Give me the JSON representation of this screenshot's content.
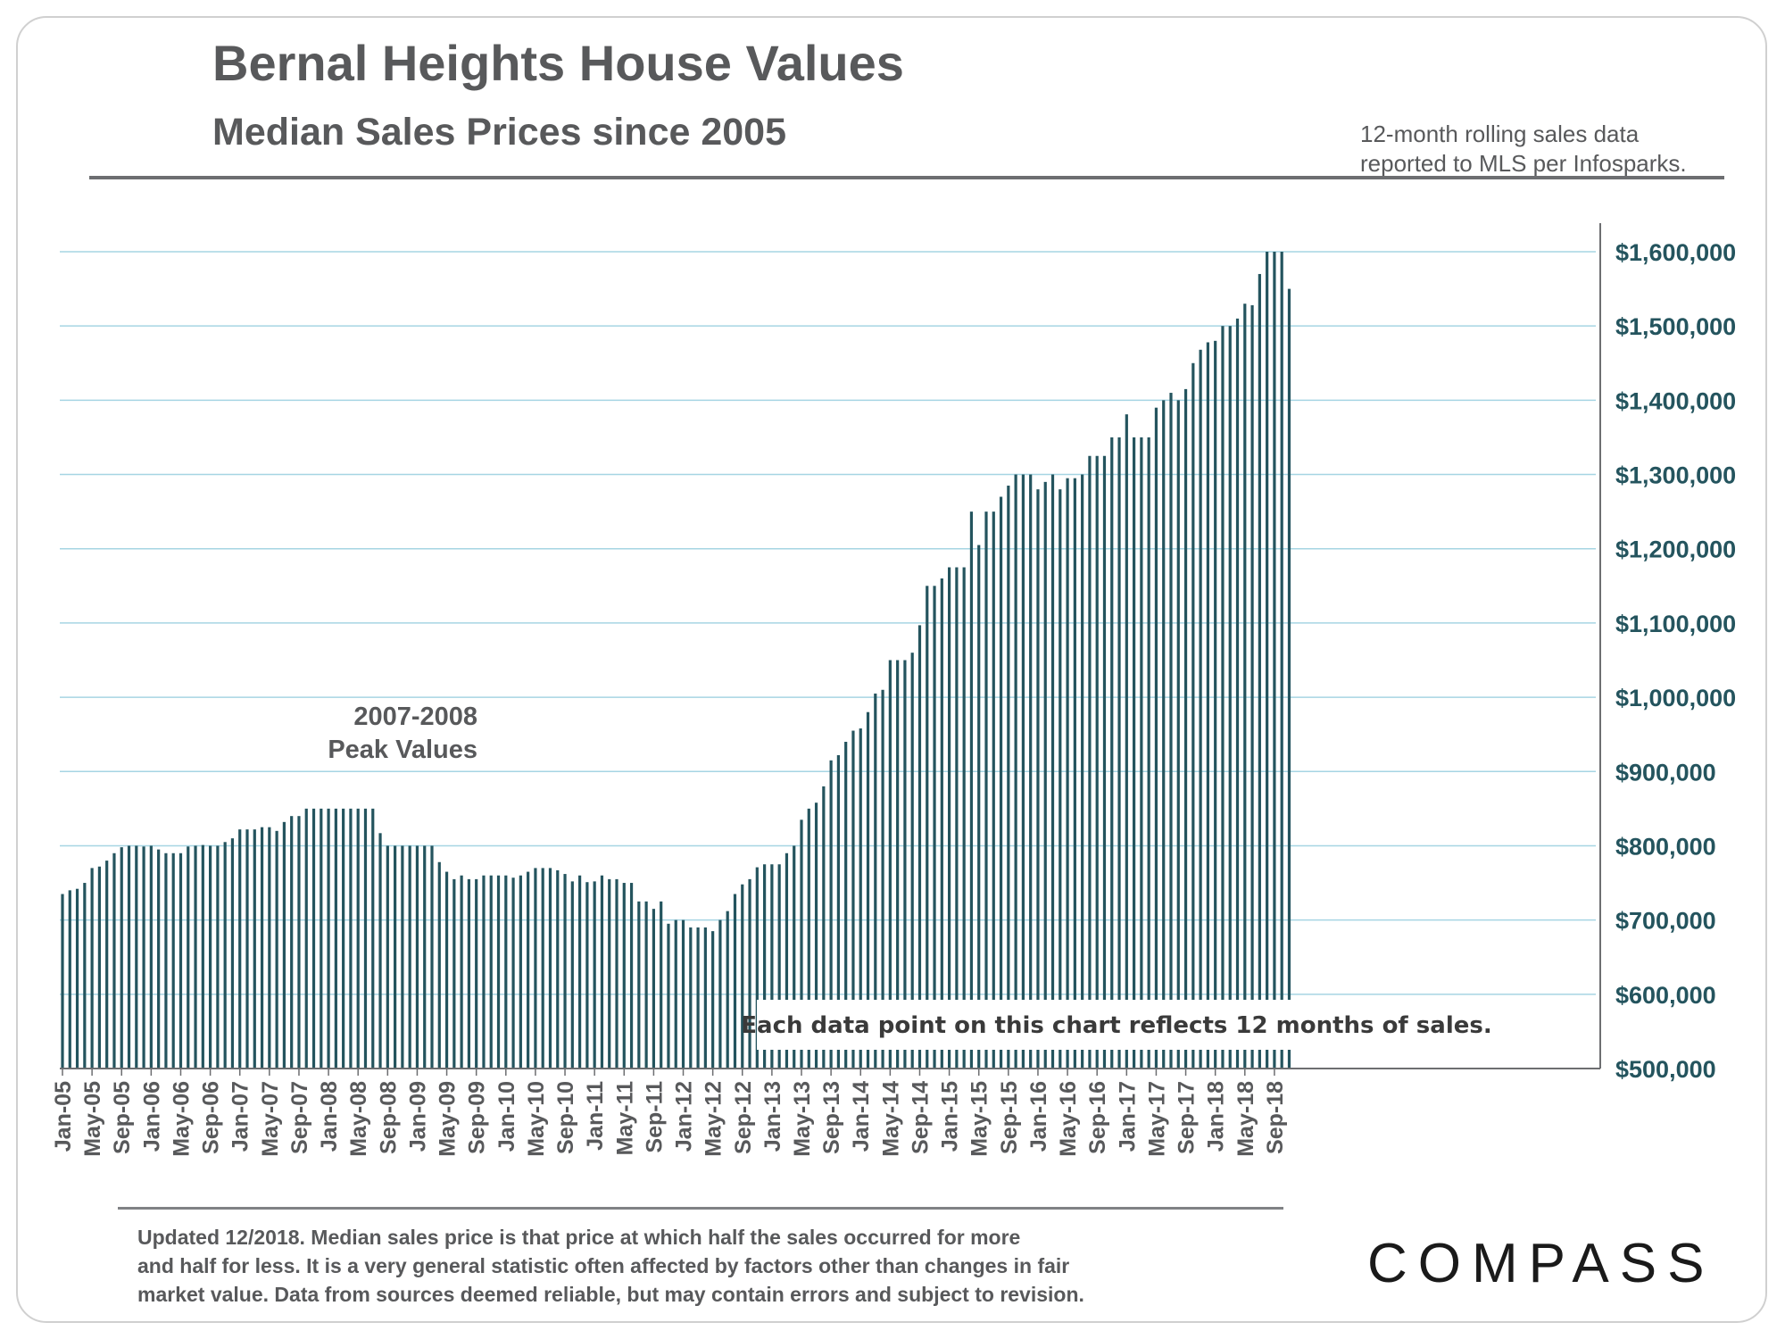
{
  "header": {
    "title": "Bernal Heights House Values",
    "subtitle": "Median Sales Prices since 2005",
    "source_line1": "12-month rolling sales data",
    "source_line2": "reported to MLS per Infosparks."
  },
  "footer": {
    "line1": "Updated 12/2018. Median sales price is that price at which half the sales occurred for more",
    "line2": "and half for less. It is a very general statistic often affected by factors other than changes in fair",
    "line3": "market value. Data from sources deemed reliable, but may contain errors and subject to revision.",
    "logo": "COMPASS"
  },
  "colors": {
    "bar": "#24545e",
    "grid": "#a6d5e3",
    "axis_label": "#24545e",
    "text": "#58595b"
  },
  "chart_data": {
    "type": "bar",
    "title": "Bernal Heights House Values",
    "subtitle": "Median Sales Prices since 2005",
    "xlabel": "",
    "ylabel": "",
    "ylim": [
      500000,
      1600000
    ],
    "y_ticks": [
      500000,
      600000,
      700000,
      800000,
      900000,
      1000000,
      1100000,
      1200000,
      1300000,
      1400000,
      1500000,
      1600000
    ],
    "y_tick_labels": [
      "$500,000",
      "$600,000",
      "$700,000",
      "$800,000",
      "$900,000",
      "$1,000,000",
      "$1,100,000",
      "$1,200,000",
      "$1,300,000",
      "$1,400,000",
      "$1,500,000",
      "$1,600,000"
    ],
    "y_axis_side": "right",
    "grid": true,
    "x_start": "Jan-05",
    "x_tick_labels": [
      "Jan-05",
      "May-05",
      "Sep-05",
      "Jan-06",
      "May-06",
      "Sep-06",
      "Jan-07",
      "May-07",
      "Sep-07",
      "Jan-08",
      "May-08",
      "Sep-08",
      "Jan-09",
      "May-09",
      "Sep-09",
      "Jan-10",
      "May-10",
      "Sep-10",
      "Jan-11",
      "May-11",
      "Sep-11",
      "Jan-12",
      "May-12",
      "Sep-12",
      "Jan-13",
      "May-13",
      "Sep-13",
      "Jan-14",
      "May-14",
      "Sep-14",
      "Jan-15",
      "May-15",
      "Sep-15",
      "Jan-16",
      "May-16",
      "Sep-16",
      "Jan-17",
      "May-17",
      "Sep-17",
      "Jan-18",
      "May-18",
      "Sep-18"
    ],
    "values": [
      735000,
      740000,
      742000,
      750000,
      770000,
      772000,
      780000,
      790000,
      798000,
      800000,
      800000,
      799000,
      800000,
      795000,
      790000,
      790000,
      790000,
      799000,
      800000,
      801000,
      800000,
      800000,
      805000,
      810000,
      822000,
      822000,
      822000,
      825000,
      825000,
      820000,
      832000,
      840000,
      840000,
      850000,
      850000,
      850000,
      850000,
      850000,
      850000,
      850000,
      850000,
      850000,
      850000,
      817000,
      800000,
      800000,
      800000,
      800000,
      800000,
      800000,
      800000,
      778000,
      765000,
      755000,
      760000,
      755000,
      755000,
      760000,
      760000,
      760000,
      760000,
      757000,
      760000,
      765000,
      770000,
      770000,
      770000,
      767000,
      762000,
      752000,
      760000,
      751000,
      752000,
      760000,
      755000,
      755000,
      750000,
      750000,
      725000,
      725000,
      715000,
      725000,
      695000,
      700000,
      700000,
      690000,
      690000,
      690000,
      685000,
      700000,
      712000,
      735000,
      748000,
      755000,
      771000,
      775000,
      775000,
      775000,
      790000,
      800000,
      835000,
      850000,
      858000,
      880000,
      915000,
      922000,
      940000,
      955000,
      958000,
      980000,
      1005000,
      1010000,
      1050000,
      1050000,
      1050000,
      1060000,
      1097000,
      1150000,
      1150000,
      1160000,
      1175000,
      1175000,
      1175000,
      1250000,
      1205000,
      1250000,
      1250000,
      1270000,
      1285000,
      1300000,
      1300000,
      1300000,
      1280000,
      1290000,
      1300000,
      1280000,
      1295000,
      1295000,
      1300000,
      1325000,
      1325000,
      1325000,
      1350000,
      1350000,
      1381000,
      1350000,
      1350000,
      1350000,
      1390000,
      1400000,
      1410000,
      1400000,
      1415000,
      1450000,
      1468000,
      1478000,
      1480000,
      1500000,
      1500000,
      1510000,
      1530000,
      1528000,
      1570000,
      1600000,
      1600000,
      1600000,
      1550000
    ],
    "annotations": [
      {
        "text_line1": "2007-2008",
        "text_line2": "Peak Values"
      },
      {
        "text": "Each data point on this chart reflects 12 months of sales."
      }
    ]
  }
}
